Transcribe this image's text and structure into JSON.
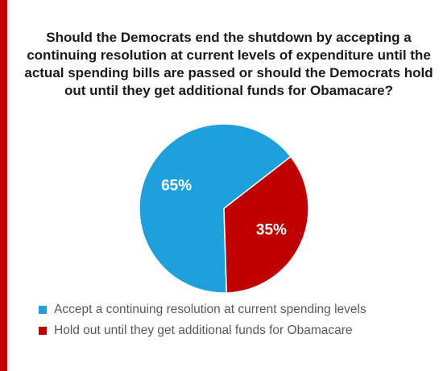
{
  "colors": {
    "accent_bar": "#c00000",
    "series_accept": "#1ea0dc",
    "series_hold_out": "#c00000"
  },
  "chart_data": {
    "type": "pie",
    "title_lines": [
      "Should the Democrats end the shutdown by accepting a",
      "continuing resolution at current levels of expenditure until the",
      "actual spending bills are passed or should the Democrats hold",
      "out until they get additional funds for Obamacare?"
    ],
    "legend_position": "bottom",
    "slices": [
      {
        "label": "Accept a continuing resolution at current spending levels",
        "value": 65,
        "value_label": "65%",
        "color": "#1ea0dc"
      },
      {
        "label": "Hold out until they get additional funds for Obamacare",
        "value": 35,
        "value_label": "35%",
        "color": "#c00000"
      }
    ]
  }
}
